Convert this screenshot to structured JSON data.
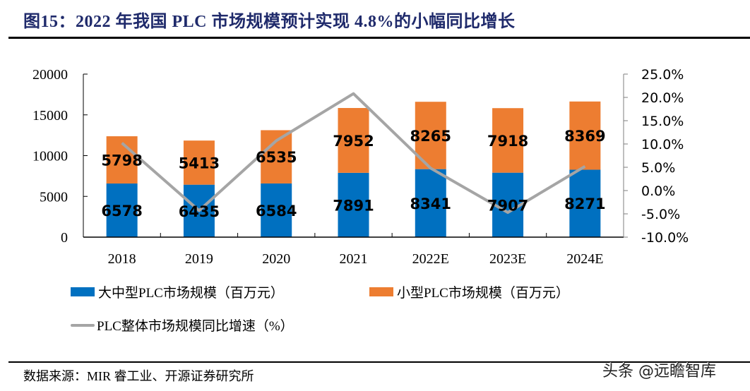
{
  "title": "图15：2022 年我国 PLC 市场规模预计实现 4.8%的小幅同比增长",
  "source": "数据来源：MIR 睿工业、开源证券研究所",
  "watermark": "头条 @远瞻智库",
  "colors": {
    "large_medium": "#0070c0",
    "small": "#ed7d31",
    "growth_line": "#a5a5a5"
  },
  "chart_data": {
    "type": "bar",
    "stacked": true,
    "title": "2022 年我国 PLC 市场规模预计实现 4.8%的小幅同比增长",
    "categories": [
      "2018",
      "2019",
      "2020",
      "2021",
      "2022E",
      "2023E",
      "2024E"
    ],
    "series": [
      {
        "name": "大中型PLC市场规模（百万元）",
        "type": "bar",
        "axis": "left",
        "values": [
          6578,
          6435,
          6584,
          7891,
          8341,
          7907,
          8271
        ]
      },
      {
        "name": "小型PLC市场规模（百万元）",
        "type": "bar",
        "axis": "left",
        "values": [
          5798,
          5413,
          6535,
          7952,
          8265,
          7918,
          8369
        ]
      },
      {
        "name": "PLC整体市场规模同比增速（%）",
        "type": "line",
        "axis": "right",
        "values": [
          10.2,
          -4.3,
          10.7,
          20.8,
          4.8,
          -4.7,
          5.2
        ]
      }
    ],
    "y_left": {
      "ylim": [
        0,
        20000
      ],
      "ticks": [
        "0",
        "5000",
        "10000",
        "15000",
        "20000"
      ],
      "tick_values": [
        0,
        5000,
        10000,
        15000,
        20000
      ]
    },
    "y_right": {
      "ylim": [
        -10,
        25
      ],
      "ticks": [
        "-10.0%",
        "-5.0%",
        "0.0%",
        "5.0%",
        "10.0%",
        "15.0%",
        "20.0%",
        "25.0%"
      ],
      "tick_values": [
        -10,
        -5,
        0,
        5,
        10,
        15,
        20,
        25
      ]
    },
    "xlabel": "",
    "ylabel": "",
    "grid": false,
    "legend": "bottom"
  }
}
